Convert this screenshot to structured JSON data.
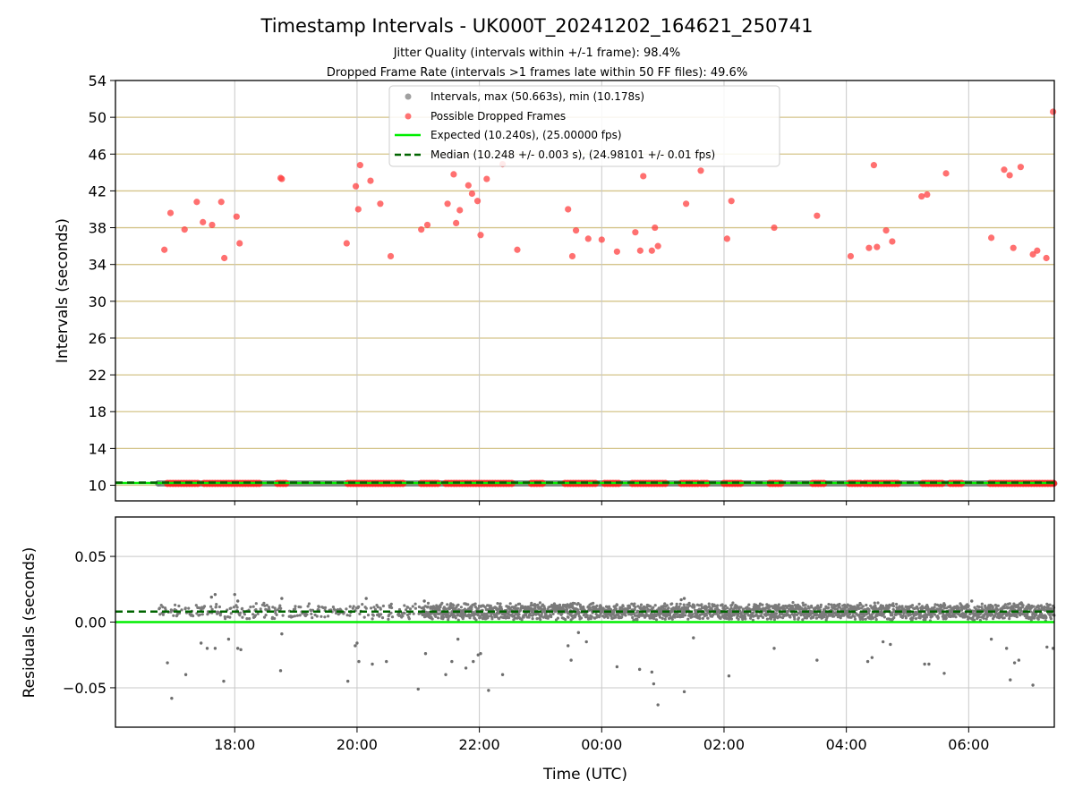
{
  "chart_data": [
    {
      "type": "scatter",
      "panel": "intervals",
      "title": "Timestamp Intervals - UK000T_20241202_164621_250741",
      "subtitle_1": "Jitter Quality (intervals within +/-1 frame): 98.4%",
      "subtitle_2": "Dropped Frame Rate (intervals >1 frames late within 50 FF files): 49.6%",
      "xlabel": "",
      "ylabel": "Intervals (seconds)",
      "ylim": [
        8.3,
        54
      ],
      "yticks": [
        10,
        14,
        18,
        22,
        26,
        30,
        34,
        38,
        42,
        46,
        50,
        54
      ],
      "xlim_hours": [
        16.05,
        31.4
      ],
      "grid": true,
      "legend_position": "top-center",
      "legend": [
        {
          "label": "Intervals, max (50.663s), min (10.178s)",
          "marker": "dot",
          "color": "#a0a0a0"
        },
        {
          "label": "Possible Dropped Frames",
          "marker": "dot",
          "color": "#ff5050"
        },
        {
          "label": "Expected (10.240s), (25.00000 fps)",
          "marker": "line",
          "color": "#00ee00"
        },
        {
          "label": "Median (10.248 +/- 0.003 s), (24.98101 +/- 0.01 fps)",
          "marker": "dashed",
          "color": "#006400"
        }
      ],
      "expected_line": 10.24,
      "median_line": 10.248,
      "interval_band": {
        "y": 10.2,
        "x_start_hours": 16.75,
        "x_end_hours": 31.4
      },
      "dropped_frames_hours_intervals": [
        [
          16.85,
          35.6
        ],
        [
          16.95,
          39.6
        ],
        [
          17.18,
          37.8
        ],
        [
          17.38,
          40.8
        ],
        [
          17.48,
          38.6
        ],
        [
          17.63,
          38.3
        ],
        [
          17.78,
          40.8
        ],
        [
          17.83,
          34.7
        ],
        [
          18.03,
          39.2
        ],
        [
          18.08,
          36.3
        ],
        [
          18.75,
          43.4
        ],
        [
          18.77,
          43.3
        ],
        [
          19.83,
          36.3
        ],
        [
          19.98,
          42.5
        ],
        [
          20.02,
          40.0
        ],
        [
          20.05,
          44.8
        ],
        [
          20.22,
          43.1
        ],
        [
          20.38,
          40.6
        ],
        [
          20.55,
          34.9
        ],
        [
          21.05,
          37.8
        ],
        [
          21.15,
          38.3
        ],
        [
          21.48,
          40.6
        ],
        [
          21.58,
          43.8
        ],
        [
          21.62,
          38.5
        ],
        [
          21.68,
          39.9
        ],
        [
          21.82,
          42.6
        ],
        [
          21.88,
          41.7
        ],
        [
          21.97,
          40.9
        ],
        [
          22.02,
          37.2
        ],
        [
          22.12,
          43.3
        ],
        [
          22.38,
          44.9
        ],
        [
          22.62,
          35.6
        ],
        [
          23.45,
          40.0
        ],
        [
          23.52,
          34.9
        ],
        [
          23.58,
          37.7
        ],
        [
          23.78,
          36.8
        ],
        [
          24.0,
          36.7
        ],
        [
          24.25,
          35.4
        ],
        [
          24.55,
          37.5
        ],
        [
          24.63,
          35.5
        ],
        [
          24.68,
          43.6
        ],
        [
          24.82,
          35.5
        ],
        [
          24.87,
          38.0
        ],
        [
          24.92,
          36.0
        ],
        [
          25.38,
          40.6
        ],
        [
          25.62,
          44.2
        ],
        [
          26.05,
          36.8
        ],
        [
          26.12,
          40.9
        ],
        [
          26.82,
          38.0
        ],
        [
          27.52,
          39.3
        ],
        [
          28.07,
          34.9
        ],
        [
          28.37,
          35.8
        ],
        [
          28.45,
          44.8
        ],
        [
          28.5,
          35.9
        ],
        [
          28.65,
          37.7
        ],
        [
          28.75,
          36.5
        ],
        [
          29.23,
          41.4
        ],
        [
          29.32,
          41.6
        ],
        [
          29.63,
          43.9
        ],
        [
          30.37,
          36.9
        ],
        [
          30.58,
          44.3
        ],
        [
          30.67,
          43.7
        ],
        [
          30.73,
          35.8
        ],
        [
          30.85,
          44.6
        ],
        [
          31.05,
          35.1
        ],
        [
          31.12,
          35.5
        ],
        [
          31.27,
          34.7
        ],
        [
          31.38,
          50.6
        ]
      ],
      "dropped_frames_baseline_segments_hours": [
        [
          16.9,
          17.4
        ],
        [
          17.5,
          18.4
        ],
        [
          18.7,
          18.85
        ],
        [
          19.85,
          20.75
        ],
        [
          21.05,
          21.35
        ],
        [
          21.45,
          22.55
        ],
        [
          22.85,
          23.05
        ],
        [
          23.4,
          23.9
        ],
        [
          24.05,
          24.3
        ],
        [
          24.5,
          25.05
        ],
        [
          25.3,
          25.6
        ],
        [
          25.63,
          25.75
        ],
        [
          26.0,
          26.3
        ],
        [
          26.75,
          26.95
        ],
        [
          27.45,
          27.65
        ],
        [
          28.05,
          28.25
        ],
        [
          28.3,
          28.85
        ],
        [
          29.25,
          29.6
        ],
        [
          29.7,
          29.9
        ],
        [
          30.35,
          31.4
        ]
      ]
    },
    {
      "type": "scatter",
      "panel": "residuals",
      "title": "",
      "xlabel": "Time (UTC)",
      "ylabel": "Residuals (seconds)",
      "ylim": [
        -0.08,
        0.08
      ],
      "yticks": [
        0.05,
        0.0,
        -0.05
      ],
      "ytick_labels": [
        "0.05",
        "0.00",
        "−0.05"
      ],
      "xticks_hours": [
        18,
        20,
        22,
        24,
        26,
        28,
        30
      ],
      "xtick_labels": [
        "18:00",
        "20:00",
        "22:00",
        "00:00",
        "02:00",
        "04:00",
        "06:00"
      ],
      "xlim_hours": [
        16.05,
        31.4
      ],
      "grid": true,
      "expected_line": 0.0,
      "median_line": 0.008,
      "residual_band": {
        "center": 0.008,
        "spread": 0.006,
        "x_start_hours": 16.75,
        "x_end_hours": 31.4
      },
      "outliers_hours_residuals": [
        [
          16.9,
          -0.031
        ],
        [
          16.97,
          -0.058
        ],
        [
          17.2,
          -0.04
        ],
        [
          17.45,
          -0.016
        ],
        [
          17.55,
          -0.02
        ],
        [
          17.68,
          -0.02
        ],
        [
          17.82,
          -0.045
        ],
        [
          17.9,
          -0.013
        ],
        [
          18.05,
          -0.02
        ],
        [
          18.1,
          -0.021
        ],
        [
          18.75,
          -0.037
        ],
        [
          18.77,
          -0.009
        ],
        [
          19.85,
          -0.045
        ],
        [
          19.97,
          -0.018
        ],
        [
          20.0,
          -0.016
        ],
        [
          20.03,
          -0.03
        ],
        [
          20.25,
          -0.032
        ],
        [
          20.48,
          -0.03
        ],
        [
          21.0,
          -0.051
        ],
        [
          21.12,
          -0.024
        ],
        [
          21.45,
          -0.04
        ],
        [
          21.55,
          -0.03
        ],
        [
          21.65,
          -0.013
        ],
        [
          21.78,
          -0.035
        ],
        [
          21.9,
          -0.03
        ],
        [
          21.98,
          -0.025
        ],
        [
          22.02,
          -0.024
        ],
        [
          22.15,
          -0.052
        ],
        [
          22.38,
          -0.04
        ],
        [
          23.45,
          -0.018
        ],
        [
          23.5,
          -0.029
        ],
        [
          23.62,
          -0.008
        ],
        [
          23.75,
          -0.015
        ],
        [
          24.25,
          -0.034
        ],
        [
          24.62,
          -0.036
        ],
        [
          24.82,
          -0.038
        ],
        [
          24.85,
          -0.047
        ],
        [
          24.92,
          -0.063
        ],
        [
          25.35,
          -0.053
        ],
        [
          25.5,
          -0.012
        ],
        [
          26.08,
          -0.041
        ],
        [
          26.82,
          -0.02
        ],
        [
          27.52,
          -0.029
        ],
        [
          28.35,
          -0.03
        ],
        [
          28.42,
          -0.027
        ],
        [
          28.6,
          -0.015
        ],
        [
          28.72,
          -0.017
        ],
        [
          29.28,
          -0.032
        ],
        [
          29.35,
          -0.032
        ],
        [
          29.6,
          -0.039
        ],
        [
          30.37,
          -0.013
        ],
        [
          30.62,
          -0.02
        ],
        [
          30.68,
          -0.044
        ],
        [
          30.75,
          -0.031
        ],
        [
          30.82,
          -0.029
        ],
        [
          31.05,
          -0.048
        ],
        [
          31.28,
          -0.019
        ],
        [
          31.38,
          -0.02
        ],
        [
          17.62,
          0.019
        ],
        [
          17.68,
          0.021
        ],
        [
          18.0,
          0.021
        ],
        [
          18.05,
          0.016
        ],
        [
          18.77,
          0.018
        ],
        [
          20.15,
          0.018
        ],
        [
          21.1,
          0.016
        ],
        [
          25.3,
          0.017
        ],
        [
          25.35,
          0.018
        ],
        [
          30.05,
          0.016
        ]
      ]
    }
  ]
}
